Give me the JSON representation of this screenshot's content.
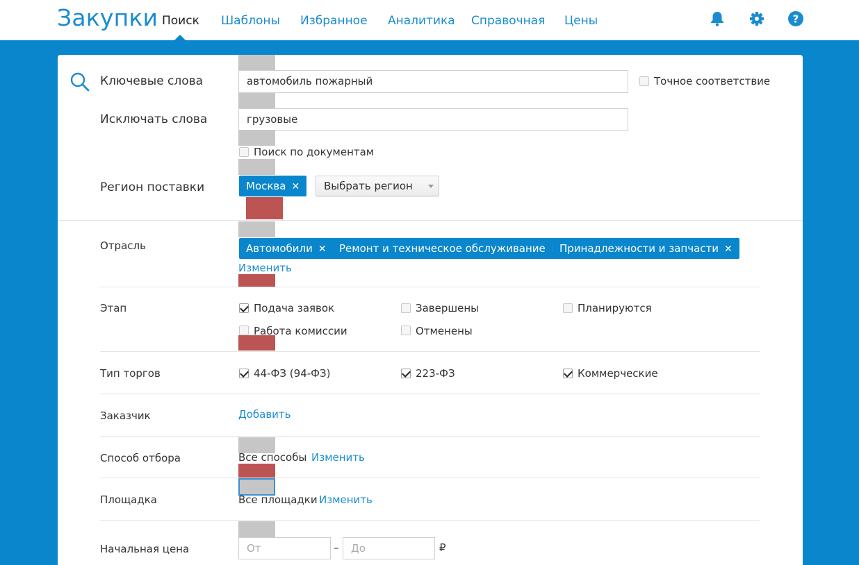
{
  "app": {
    "title": "Закупки"
  },
  "nav": {
    "items": [
      {
        "label": "Поиск",
        "active": true
      },
      {
        "label": "Шаблоны"
      },
      {
        "label": "Избранное"
      },
      {
        "label": "Аналитика"
      },
      {
        "label": "Справочная"
      },
      {
        "label": "Цены"
      }
    ]
  },
  "icons": {
    "notifications": "bell-icon",
    "settings": "gear-icon",
    "help": "help-icon",
    "search": "search-icon"
  },
  "colors": {
    "accent": "#1a8ccf",
    "background": "#0a86cc",
    "marker_red": "#bd5454",
    "marker_gray": "#c6c6c6"
  },
  "search": {
    "keywords_label": "Ключевые слова",
    "keywords_value": "автомобиль пожарный",
    "exact_match_label": "Точное соответствие",
    "exact_match_checked": false,
    "exclude_label": "Исключать слова",
    "exclude_value": "грузовые",
    "doc_search_label": "Поиск по документам",
    "doc_search_checked": false,
    "region_label": "Регион поставки",
    "region_tags": [
      "Москва"
    ],
    "region_select": "Выбрать регион"
  },
  "filters": {
    "industry_label": "Отрасль",
    "industry_tags": [
      "Автомобили",
      "Ремонт и техническое обслуживание",
      "Принадлежности и запчасти"
    ],
    "industry_change": "Изменить",
    "stage_label": "Этап",
    "stages": [
      {
        "label": "Подача заявок",
        "checked": true
      },
      {
        "label": "Завершены",
        "checked": false
      },
      {
        "label": "Планируются",
        "checked": false
      },
      {
        "label": "Работа комиссии",
        "checked": false
      },
      {
        "label": "Отменены",
        "checked": false
      }
    ],
    "trade_type_label": "Тип торгов",
    "trade_types": [
      {
        "label": "44-ФЗ (94-ФЗ)",
        "checked": true
      },
      {
        "label": "223-ФЗ",
        "checked": true
      },
      {
        "label": "Коммерческие",
        "checked": true
      }
    ],
    "customer_label": "Заказчик",
    "customer_add": "Добавить",
    "selection_label": "Способ отбора",
    "selection_value": "Все способы",
    "selection_change": "Изменить",
    "platform_label": "Площадка",
    "platform_value": "Все площадки",
    "platform_change": "Изменить",
    "price_label": "Начальная цена",
    "price_from_placeholder": "От",
    "price_to_placeholder": "До",
    "price_dash": "–",
    "currency": "₽"
  }
}
